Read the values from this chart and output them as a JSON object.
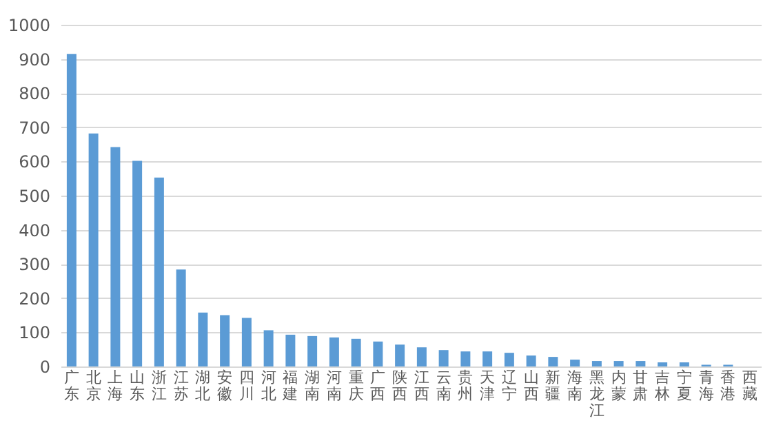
{
  "chart_data": {
    "type": "bar",
    "categories": [
      "广东",
      "北京",
      "上海",
      "山东",
      "浙江",
      "江苏",
      "湖北",
      "安徽",
      "四川",
      "河北",
      "福建",
      "湖南",
      "河南",
      "重庆",
      "广西",
      "陕西",
      "江西",
      "云南",
      "贵州",
      "天津",
      "辽宁",
      "山西",
      "新疆",
      "海南",
      "黑龙江",
      "内蒙",
      "甘肃",
      "吉林",
      "宁夏",
      "青海",
      "香港",
      "西藏"
    ],
    "values": [
      915,
      682,
      642,
      602,
      553,
      284,
      158,
      150,
      142,
      106,
      93,
      89,
      85,
      81,
      73,
      64,
      56,
      48,
      44,
      44,
      40,
      32,
      28,
      20,
      16,
      16,
      16,
      12,
      12,
      5,
      5,
      0
    ],
    "color": "#5b9bd5",
    "ylim": [
      0,
      1000
    ],
    "yticks": [
      0,
      100,
      200,
      300,
      400,
      500,
      600,
      700,
      800,
      900,
      1000
    ],
    "grid": "y"
  }
}
